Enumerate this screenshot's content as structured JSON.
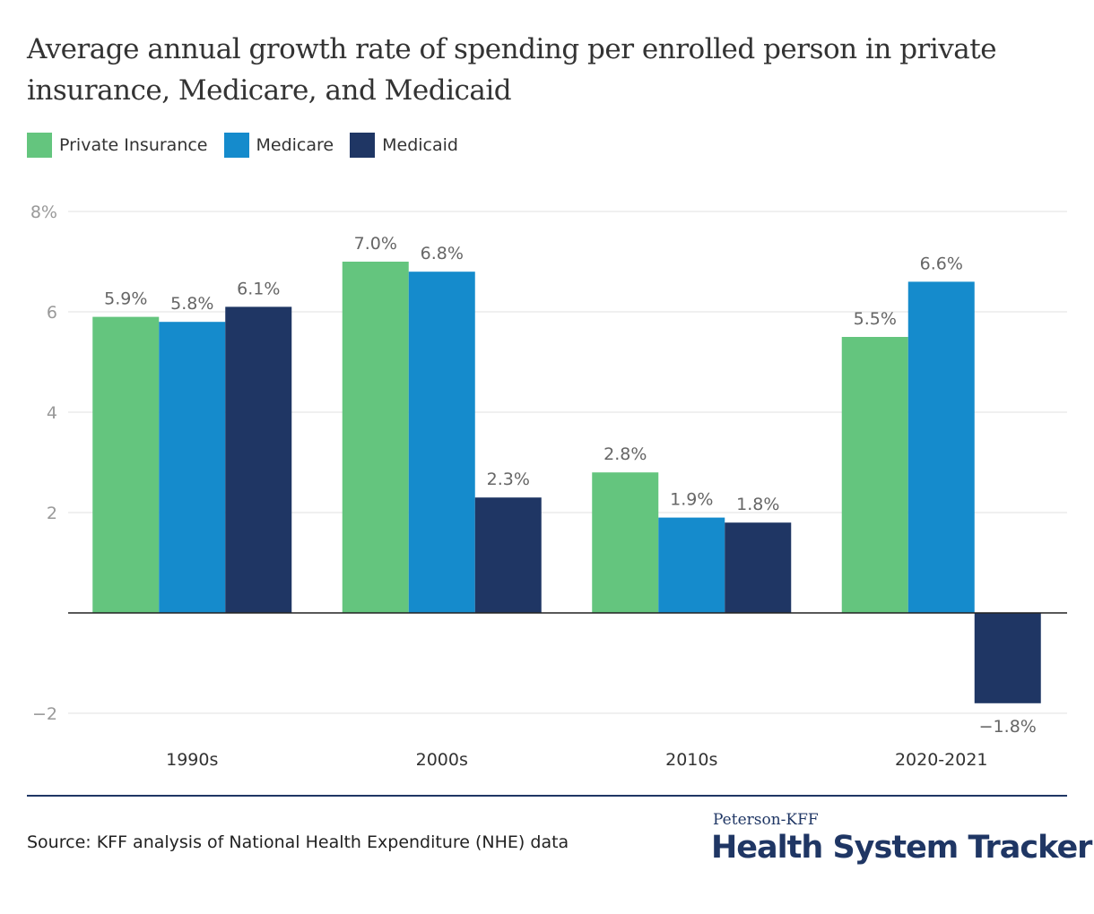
{
  "chart_data": {
    "type": "bar",
    "title": "Average annual growth rate of spending per enrolled person in private insurance, Medicare, and Medicaid",
    "categories": [
      "1990s",
      "2000s",
      "2010s",
      "2020-2021"
    ],
    "series": [
      {
        "name": "Private Insurance",
        "color": "#64c57e",
        "values": [
          5.9,
          7.0,
          2.8,
          5.5
        ],
        "labels": [
          "5.9%",
          "7.0%",
          "2.8%",
          "5.5%"
        ]
      },
      {
        "name": "Medicare",
        "color": "#158bcc",
        "values": [
          5.8,
          6.8,
          1.9,
          6.6
        ],
        "labels": [
          "5.8%",
          "6.8%",
          "1.9%",
          "6.6%"
        ]
      },
      {
        "name": "Medicaid",
        "color": "#1f3664",
        "values": [
          6.1,
          2.3,
          1.8,
          -1.8
        ],
        "labels": [
          "6.1%",
          "2.3%",
          "1.8%",
          "−1.8%"
        ]
      }
    ],
    "ylim": [
      -2,
      8
    ],
    "yticks": [
      -2,
      2,
      4,
      6,
      8
    ],
    "ytick_labels": [
      "−2",
      "2",
      "4",
      "6",
      "8%"
    ],
    "grid": true,
    "legend_position": "top-left",
    "xlabel": "",
    "ylabel": ""
  },
  "footer": {
    "source": "Source: KFF analysis of National Health Expenditure (NHE) data",
    "logo_top": "Peterson-KFF",
    "logo_main": "Health System Tracker"
  }
}
